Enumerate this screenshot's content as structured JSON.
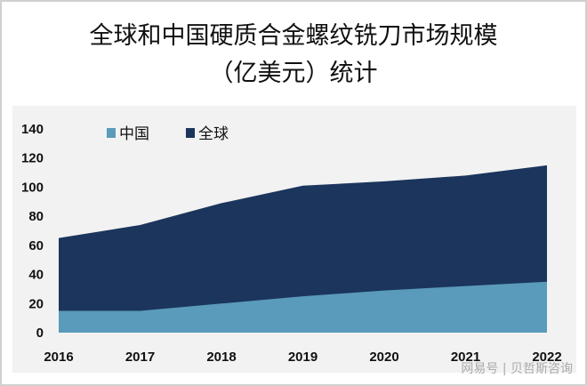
{
  "title_line1": "全球和中国硬质合金螺纹铣刀市场规模",
  "title_line2": "（亿美元）统计",
  "watermark": "网易号 | 贝哲斯咨询",
  "chart_data": {
    "type": "area",
    "title": "全球和中国硬质合金螺纹铣刀市场规模（亿美元）统计",
    "categories": [
      "2016",
      "2017",
      "2018",
      "2019",
      "2020",
      "2021",
      "2022"
    ],
    "series": [
      {
        "name": "中国",
        "color": "#5a9aba",
        "values": [
          15,
          15,
          20,
          25,
          29,
          32,
          35
        ]
      },
      {
        "name": "全球",
        "color": "#1b355c",
        "values": [
          65,
          74,
          89,
          101,
          104,
          108,
          115
        ]
      }
    ],
    "ylim": [
      0,
      140
    ],
    "yticks": [
      0,
      20,
      40,
      60,
      80,
      100,
      120,
      140
    ],
    "legend": "top-left",
    "grid": false
  }
}
